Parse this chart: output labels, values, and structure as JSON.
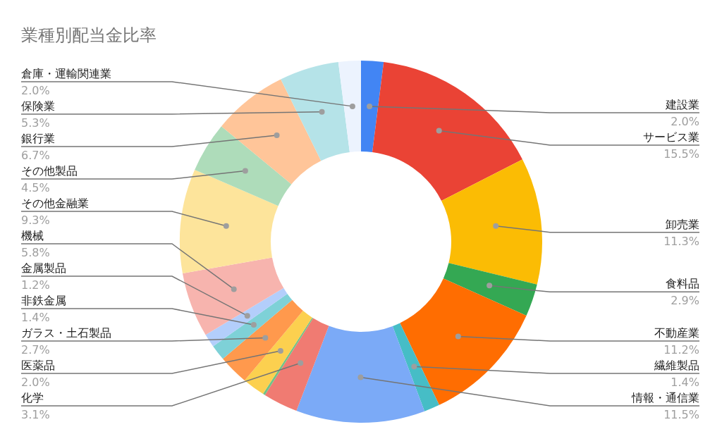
{
  "chart_data": {
    "type": "donut",
    "title": "業種別配当金比率",
    "categories": [
      "建設業",
      "サービス業",
      "卸売業",
      "食料品",
      "不動産業",
      "繊維製品",
      "情報・通信業",
      "化学",
      null,
      "医薬品",
      "ガラス・土石製品",
      "非鉄金属",
      "金属製品",
      "機械",
      "その他金融業",
      "その他製品",
      "銀行業",
      "保険業",
      "倉庫・運輸関連業"
    ],
    "values": [
      2.0,
      15.5,
      11.3,
      2.9,
      11.2,
      1.4,
      11.5,
      3.1,
      0.2,
      2.0,
      2.7,
      1.4,
      1.2,
      5.8,
      9.3,
      4.5,
      6.7,
      5.3,
      2.0
    ],
    "value_labels": [
      "2.0%",
      "15.5%",
      "11.3%",
      "2.9%",
      "11.2%",
      "1.4%",
      "11.5%",
      "3.1%",
      null,
      "2.0%",
      "2.7%",
      "1.4%",
      "1.2%",
      "5.8%",
      "9.3%",
      "4.5%",
      "6.7%",
      "5.3%",
      "2.0%"
    ],
    "colors": [
      "#4285f4",
      "#ea4335",
      "#fbbc04",
      "#34a853",
      "#ff6d01",
      "#46bdc6",
      "#7baaf7",
      "#f07b72",
      "#71c287",
      "#fcd04f",
      "#ff994d",
      "#7ed1d7",
      "#b3cefb",
      "#f7b4ae",
      "#fde49b",
      "#aedcba",
      "#ffc599",
      "#b5e3e8",
      "#ecf3fe"
    ]
  }
}
